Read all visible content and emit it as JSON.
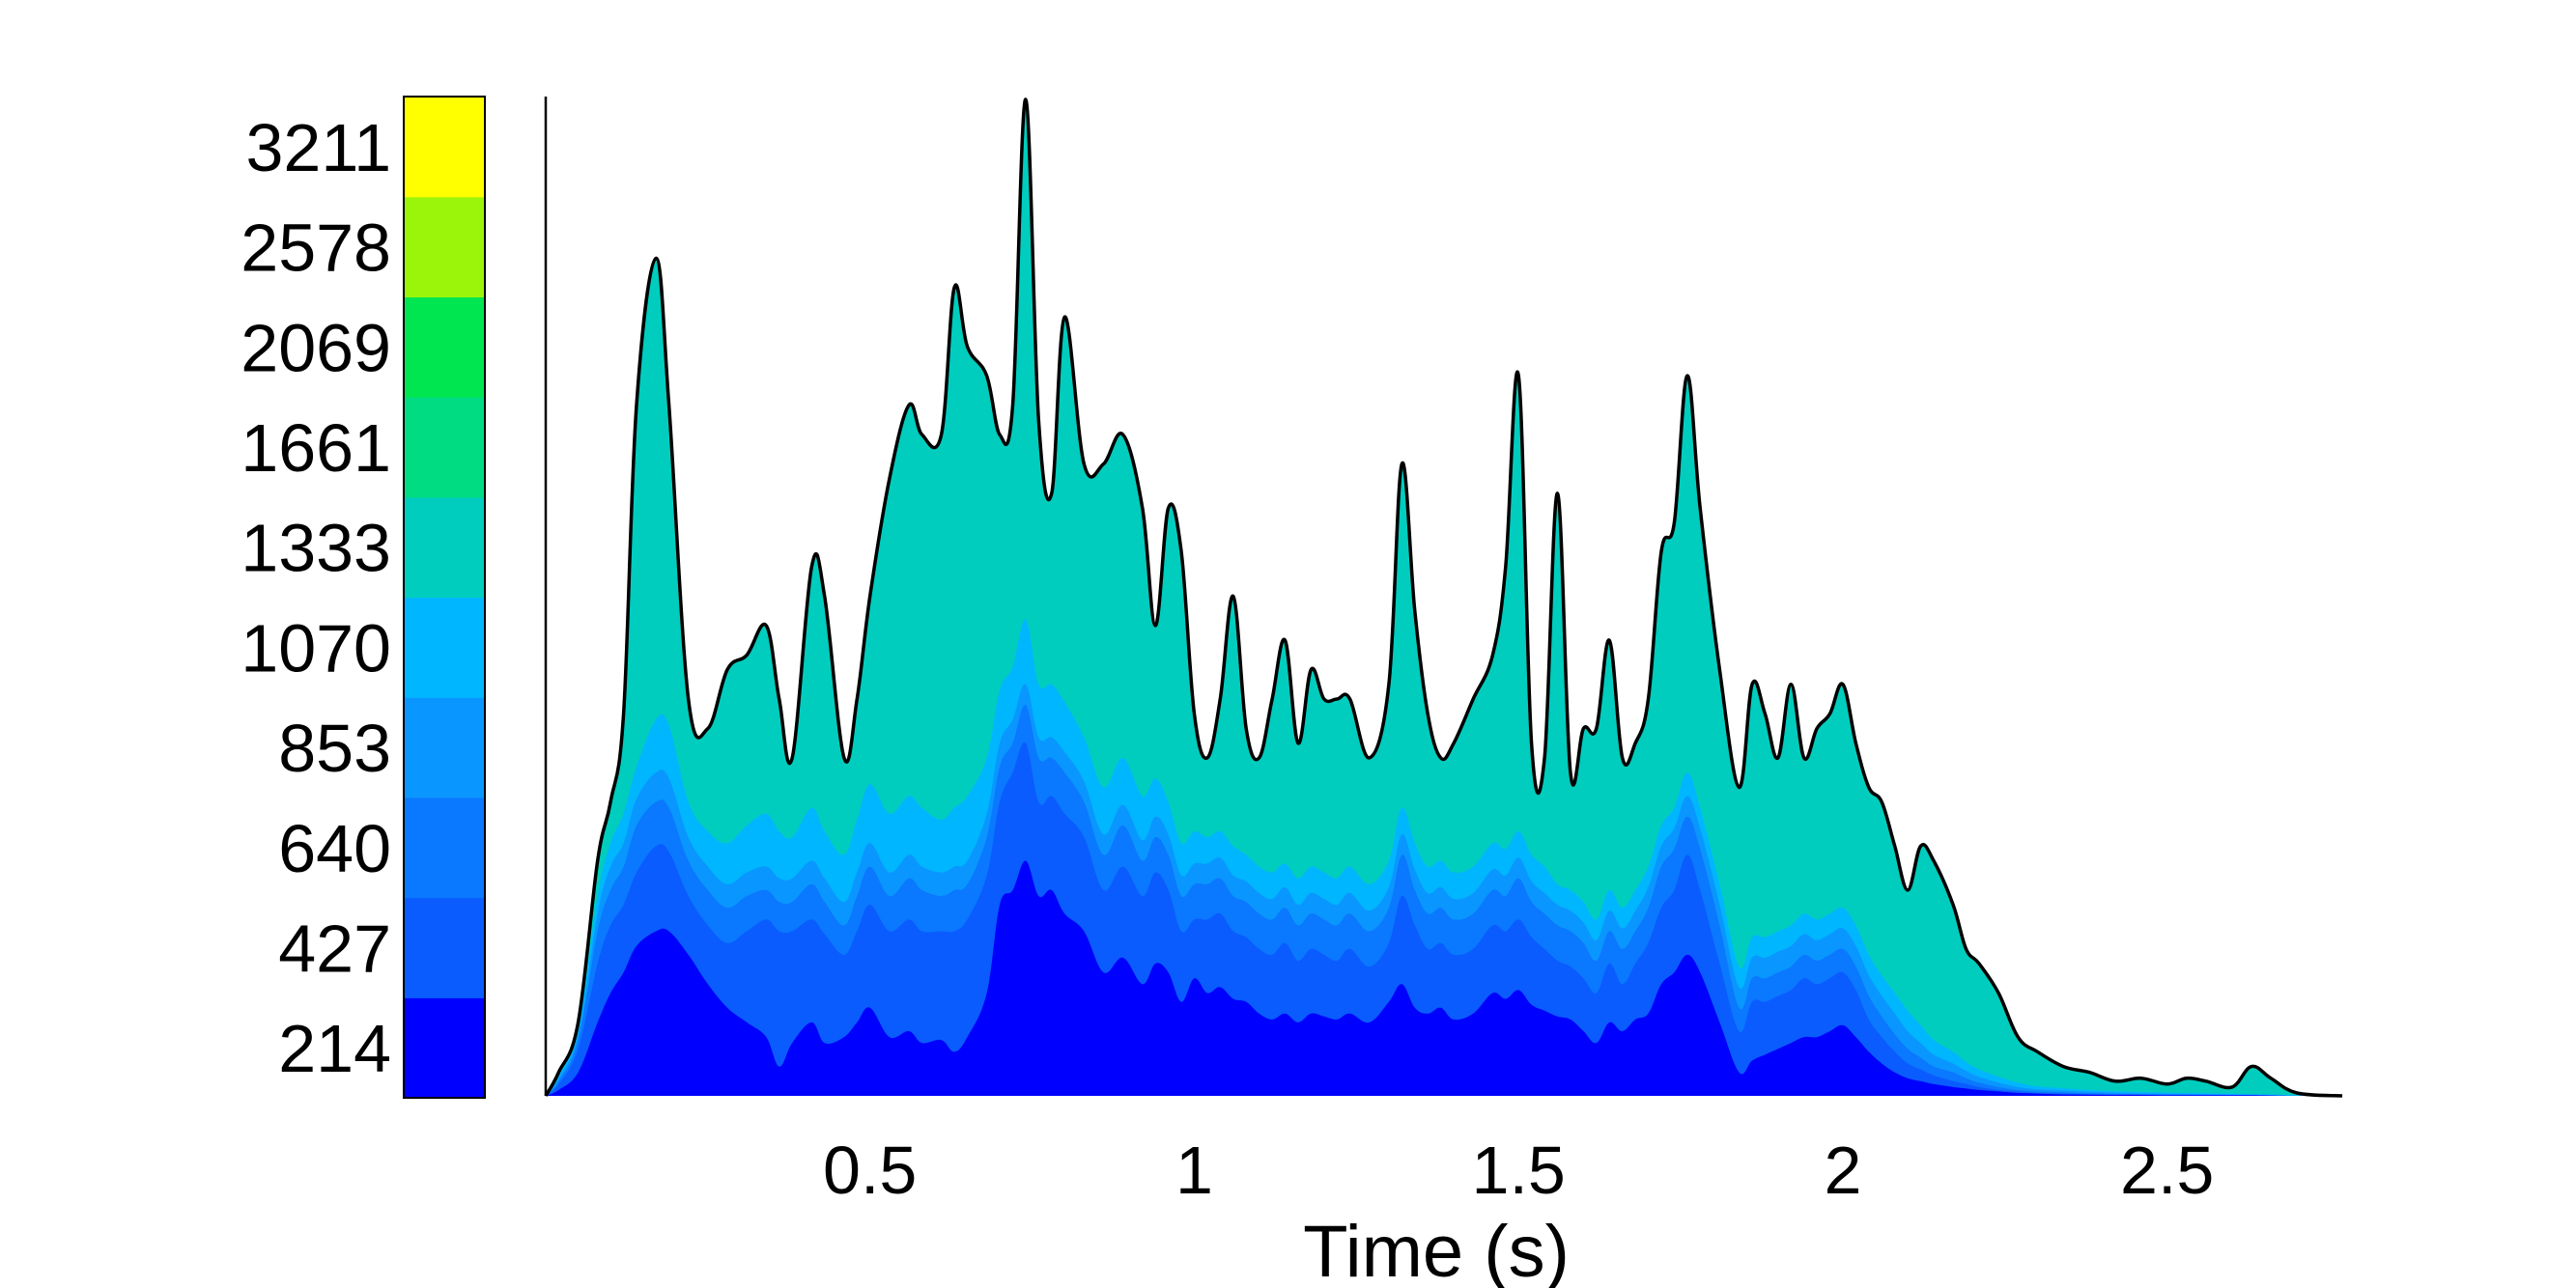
{
  "chart_data": {
    "type": "area",
    "title": "",
    "xlabel": "Time (s)",
    "ylabel": "",
    "xlim": [
      0,
      2.77
    ],
    "ylim": [
      0,
      3400
    ],
    "grid": false,
    "x_ticks": [
      {
        "value": 0.5,
        "label": "0.5"
      },
      {
        "value": 1,
        "label": "1"
      },
      {
        "value": 1.5,
        "label": "1.5"
      },
      {
        "value": 2,
        "label": "2"
      },
      {
        "value": 2.5,
        "label": "2.5"
      }
    ],
    "legend": {
      "type": "colorbar",
      "placement": "left",
      "levels": [
        "214",
        "427",
        "640",
        "853",
        "1070",
        "1333",
        "1661",
        "2069",
        "2578",
        "3211"
      ],
      "colors": [
        "#0000ff",
        "#0a5cff",
        "#0a78ff",
        "#0a96ff",
        "#00b6ff",
        "#00cdbe",
        "#00dc82",
        "#00e650",
        "#9bf50a",
        "#ffff00"
      ]
    },
    "envelope": {
      "x": [
        0.0,
        0.02,
        0.05,
        0.08,
        0.1,
        0.12,
        0.14,
        0.17,
        0.19,
        0.22,
        0.25,
        0.28,
        0.31,
        0.34,
        0.36,
        0.38,
        0.41,
        0.43,
        0.46,
        0.48,
        0.5,
        0.53,
        0.56,
        0.58,
        0.61,
        0.63,
        0.65,
        0.68,
        0.7,
        0.72,
        0.74,
        0.76,
        0.78,
        0.8,
        0.83,
        0.86,
        0.89,
        0.92,
        0.94,
        0.96,
        0.98,
        1.0,
        1.02,
        1.04,
        1.06,
        1.08,
        1.1,
        1.12,
        1.14,
        1.16,
        1.18,
        1.2,
        1.22,
        1.24,
        1.27,
        1.3,
        1.32,
        1.34,
        1.36,
        1.38,
        1.4,
        1.43,
        1.46,
        1.48,
        1.5,
        1.52,
        1.54,
        1.56,
        1.58,
        1.6,
        1.62,
        1.64,
        1.66,
        1.68,
        1.7,
        1.72,
        1.74,
        1.76,
        1.78,
        1.81,
        1.84,
        1.86,
        1.88,
        1.9,
        1.92,
        1.94,
        1.96,
        1.98,
        2.0,
        2.02,
        2.04,
        2.06,
        2.08,
        2.1,
        2.12,
        2.14,
        2.17,
        2.19,
        2.21,
        2.24,
        2.27,
        2.3,
        2.34,
        2.38,
        2.42,
        2.46,
        2.5,
        2.53,
        2.56,
        2.6,
        2.63,
        2.66,
        2.7,
        2.77
      ],
      "y": [
        0,
        80,
        250,
        800,
        1000,
        1300,
        2350,
        2850,
        2350,
        1350,
        1250,
        1450,
        1500,
        1600,
        1350,
        1150,
        1800,
        1700,
        1150,
        1350,
        1700,
        2100,
        2350,
        2250,
        2250,
        2750,
        2550,
        2450,
        2250,
        2350,
        3390,
        2300,
        2050,
        2650,
        2150,
        2150,
        2250,
        2000,
        1600,
        2000,
        1850,
        1300,
        1150,
        1350,
        1700,
        1250,
        1150,
        1350,
        1550,
        1200,
        1450,
        1350,
        1350,
        1350,
        1150,
        1400,
        2150,
        1650,
        1300,
        1150,
        1200,
        1350,
        1500,
        1800,
        2450,
        1200,
        1150,
        2050,
        1100,
        1250,
        1250,
        1550,
        1150,
        1200,
        1350,
        1850,
        1950,
        2450,
        2000,
        1450,
        1050,
        1400,
        1300,
        1150,
        1400,
        1150,
        1250,
        1300,
        1400,
        1200,
        1050,
        1000,
        850,
        700,
        850,
        800,
        650,
        500,
        450,
        350,
        200,
        150,
        100,
        80,
        50,
        60,
        40,
        60,
        50,
        30,
        100,
        60,
        10,
        0
      ]
    },
    "bands": [
      {
        "level": "214",
        "color": "#0000ff",
        "y": [
          0,
          20,
          80,
          250,
          350,
          420,
          510,
          560,
          560,
          480,
          380,
          300,
          250,
          200,
          100,
          180,
          250,
          180,
          200,
          250,
          300,
          200,
          220,
          180,
          190,
          150,
          200,
          350,
          650,
          700,
          800,
          680,
          700,
          620,
          560,
          420,
          470,
          380,
          450,
          420,
          320,
          400,
          350,
          370,
          330,
          320,
          280,
          260,
          280,
          250,
          280,
          270,
          260,
          280,
          250,
          320,
          380,
          300,
          280,
          300,
          260,
          280,
          350,
          330,
          360,
          310,
          290,
          270,
          260,
          220,
          180,
          250,
          220,
          260,
          280,
          380,
          420,
          480,
          420,
          250,
          80,
          120,
          140,
          160,
          180,
          200,
          200,
          220,
          240,
          200,
          150,
          110,
          80,
          60,
          50,
          40,
          30,
          25,
          20,
          15,
          10,
          8,
          5,
          4,
          3,
          3,
          2,
          2,
          2,
          2,
          2,
          1,
          0,
          0
        ]
      },
      {
        "level": "427",
        "color": "#0a5cff",
        "y": [
          0,
          40,
          160,
          450,
          580,
          650,
          760,
          850,
          830,
          680,
          580,
          520,
          560,
          600,
          560,
          560,
          600,
          550,
          480,
          560,
          650,
          560,
          600,
          560,
          560,
          560,
          600,
          750,
          1000,
          1100,
          1200,
          1000,
          1020,
          960,
          880,
          700,
          780,
          680,
          760,
          700,
          560,
          600,
          600,
          620,
          560,
          540,
          500,
          480,
          520,
          460,
          500,
          480,
          460,
          500,
          440,
          520,
          680,
          580,
          500,
          520,
          480,
          500,
          580,
          560,
          600,
          540,
          500,
          460,
          440,
          400,
          350,
          450,
          380,
          450,
          520,
          640,
          700,
          820,
          700,
          450,
          220,
          320,
          320,
          340,
          360,
          400,
          380,
          400,
          420,
          360,
          260,
          200,
          150,
          110,
          90,
          70,
          50,
          40,
          30,
          20,
          15,
          10,
          8,
          6,
          5,
          4,
          3,
          3,
          3,
          2,
          2,
          1,
          0,
          0
        ]
      },
      {
        "level": "640",
        "color": "#0a78ff",
        "y": [
          0,
          50,
          190,
          560,
          700,
          780,
          920,
          1000,
          980,
          800,
          700,
          640,
          680,
          700,
          660,
          660,
          720,
          660,
          580,
          680,
          780,
          680,
          740,
          700,
          680,
          700,
          720,
          880,
          1120,
          1200,
          1330,
          1150,
          1150,
          1100,
          1000,
          820,
          920,
          800,
          880,
          820,
          680,
          720,
          720,
          740,
          680,
          660,
          620,
          600,
          640,
          580,
          620,
          600,
          580,
          620,
          560,
          640,
          820,
          700,
          620,
          640,
          600,
          620,
          700,
          680,
          740,
          660,
          620,
          580,
          560,
          520,
          460,
          560,
          500,
          560,
          640,
          780,
          840,
          950,
          840,
          580,
          300,
          400,
          400,
          420,
          440,
          480,
          460,
          480,
          500,
          440,
          340,
          270,
          210,
          160,
          130,
          100,
          80,
          60,
          45,
          30,
          20,
          15,
          12,
          9,
          7,
          6,
          5,
          4,
          4,
          3,
          3,
          2,
          0,
          0
        ]
      },
      {
        "level": "853",
        "color": "#0a96ff",
        "y": [
          0,
          60,
          210,
          620,
          780,
          860,
          1010,
          1100,
          1080,
          880,
          780,
          720,
          760,
          780,
          740,
          740,
          800,
          740,
          660,
          760,
          860,
          760,
          820,
          780,
          760,
          780,
          800,
          960,
          1200,
          1280,
          1400,
          1220,
          1220,
          1170,
          1070,
          890,
          990,
          870,
          950,
          890,
          750,
          790,
          790,
          810,
          750,
          730,
          690,
          670,
          710,
          650,
          690,
          670,
          650,
          690,
          630,
          710,
          890,
          770,
          690,
          710,
          670,
          690,
          770,
          750,
          810,
          730,
          690,
          650,
          630,
          590,
          530,
          630,
          570,
          630,
          710,
          850,
          910,
          1020,
          910,
          650,
          370,
          470,
          470,
          490,
          510,
          550,
          530,
          550,
          570,
          510,
          410,
          340,
          280,
          220,
          180,
          140,
          110,
          85,
          65,
          45,
          30,
          22,
          18,
          14,
          11,
          9,
          8,
          7,
          6,
          5,
          4,
          3,
          1,
          0
        ]
      },
      {
        "level": "1070",
        "color": "#00b6ff",
        "y": [
          0,
          70,
          230,
          680,
          860,
          960,
          1120,
          1280,
          1260,
          1000,
          900,
          860,
          920,
          960,
          900,
          880,
          980,
          900,
          820,
          940,
          1060,
          960,
          1020,
          980,
          940,
          980,
          1020,
          1150,
          1380,
          1460,
          1620,
          1400,
          1400,
          1340,
          1220,
          1050,
          1150,
          1020,
          1080,
          1000,
          860,
          900,
          880,
          900,
          850,
          820,
          780,
          760,
          790,
          740,
          780,
          760,
          740,
          780,
          720,
          800,
          980,
          860,
          780,
          800,
          760,
          780,
          860,
          840,
          900,
          820,
          780,
          720,
          700,
          660,
          600,
          700,
          640,
          700,
          780,
          920,
          980,
          1100,
          980,
          720,
          440,
          540,
          540,
          560,
          580,
          620,
          600,
          620,
          640,
          580,
          480,
          410,
          350,
          290,
          240,
          190,
          150,
          115,
          90,
          65,
          45,
          32,
          26,
          20,
          16,
          13,
          11,
          10,
          9,
          7,
          6,
          5,
          2,
          0
        ]
      }
    ]
  }
}
